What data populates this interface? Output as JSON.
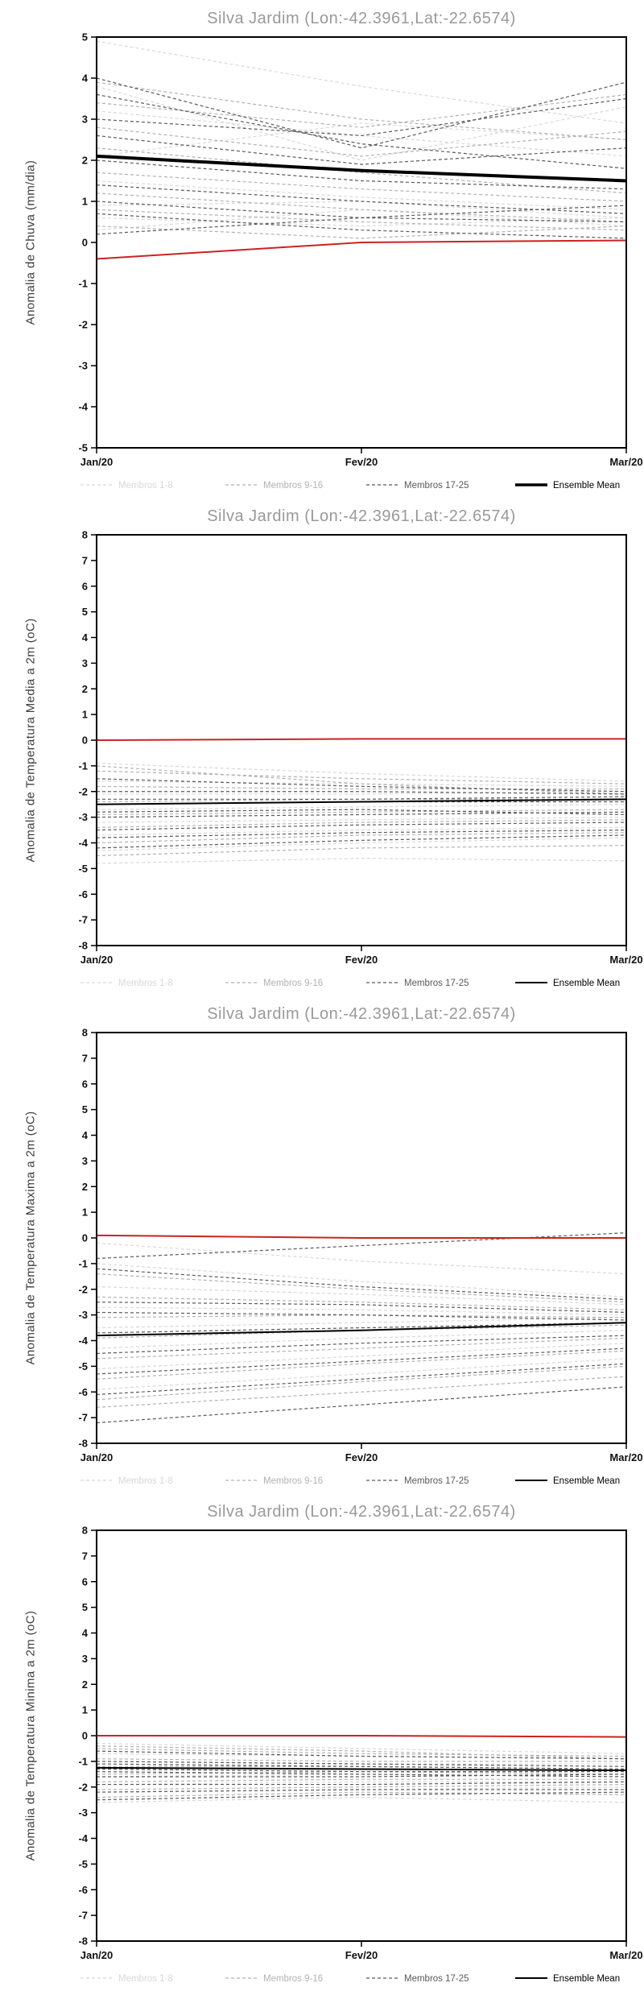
{
  "window": {
    "background": "#ffffff"
  },
  "colors": {
    "title": "#999999",
    "axis": "#000000",
    "tick_labels": "#111111",
    "ylabel": "#3c3c3c",
    "members_1_8": "#d8d8d8",
    "members_9_16": "#b2b2b2",
    "members_17_25": "#5a5a5a",
    "ensemble_mean": "#000000",
    "reference_line": "#cc2222"
  },
  "chart_data": [
    {
      "type": "line",
      "title": "Silva Jardim (Lon:-42.3961,Lat:-22.6574)",
      "ylabel": "Anomalia de Chuva (mm/dia)",
      "x": [
        "Jan/20",
        "Fev/20",
        "Mar/20"
      ],
      "ylim": [
        -5,
        5
      ],
      "ytick_step": 1,
      "grid": false,
      "legend_position": "bottom",
      "groups": [
        {
          "name": "Membros 1-8",
          "color": "#d8d8d8",
          "style": "dashed",
          "members": [
            [
              3.8,
              2.0,
              3.3
            ],
            [
              3.2,
              2.6,
              2.1
            ],
            [
              2.1,
              2.9,
              2.5
            ],
            [
              1.5,
              1.1,
              0.8
            ],
            [
              0.9,
              1.0,
              0.6
            ],
            [
              0.6,
              0.4,
              0.6
            ],
            [
              0.3,
              0.8,
              0.4
            ],
            [
              4.9,
              3.8,
              2.9
            ]
          ]
        },
        {
          "name": "Membros 9-16",
          "color": "#b2b2b2",
          "style": "dashed",
          "members": [
            [
              3.9,
              3.0,
              2.5
            ],
            [
              3.4,
              2.8,
              3.6
            ],
            [
              2.8,
              2.1,
              2.7
            ],
            [
              2.3,
              1.7,
              1.2
            ],
            [
              1.7,
              1.3,
              1.0
            ],
            [
              1.2,
              0.8,
              0.5
            ],
            [
              0.8,
              0.5,
              0.3
            ],
            [
              0.4,
              0.1,
              0.4
            ]
          ]
        },
        {
          "name": "Membros 17-25",
          "color": "#5a5a5a",
          "style": "dashed",
          "members": [
            [
              4.0,
              2.3,
              3.9
            ],
            [
              3.6,
              2.4,
              1.8
            ],
            [
              3.0,
              2.6,
              3.5
            ],
            [
              2.6,
              1.9,
              2.3
            ],
            [
              2.0,
              1.5,
              1.3
            ],
            [
              1.4,
              1.0,
              0.7
            ],
            [
              1.0,
              0.6,
              0.5
            ],
            [
              0.7,
              0.3,
              0.1
            ],
            [
              0.2,
              0.6,
              0.9
            ]
          ]
        }
      ],
      "ensemble_mean": {
        "name": "Ensemble Mean",
        "color": "#000000",
        "style": "solid",
        "width": 4,
        "values": [
          2.1,
          1.75,
          1.5
        ]
      },
      "reference_line": {
        "color": "#cc2222",
        "style": "solid",
        "width": 2,
        "values": [
          -0.4,
          0.0,
          0.05
        ]
      }
    },
    {
      "type": "line",
      "title": "Silva Jardim (Lon:-42.3961,Lat:-22.6574)",
      "ylabel": "Anomalia de Temperatura Media a 2m (oC)",
      "x": [
        "Jan/20",
        "Fev/20",
        "Mar/20"
      ],
      "ylim": [
        -8,
        8
      ],
      "ytick_step": 1,
      "grid": false,
      "legend_position": "bottom",
      "groups": [
        {
          "name": "Membros 1-8",
          "color": "#d8d8d8",
          "style": "dashed",
          "members": [
            [
              -0.9,
              -1.3,
              -1.6
            ],
            [
              -1.6,
              -1.7,
              -1.8
            ],
            [
              -2.1,
              -2.1,
              -2.0
            ],
            [
              -2.7,
              -2.6,
              -2.5
            ],
            [
              -3.2,
              -3.1,
              -3.0
            ],
            [
              -3.7,
              -3.5,
              -3.4
            ],
            [
              -4.3,
              -4.0,
              -3.8
            ],
            [
              -4.8,
              -4.6,
              -4.7
            ]
          ]
        },
        {
          "name": "Membros 9-16",
          "color": "#b2b2b2",
          "style": "dashed",
          "members": [
            [
              -1.2,
              -1.5,
              -1.7
            ],
            [
              -1.8,
              -1.9,
              -1.9
            ],
            [
              -2.4,
              -2.3,
              -2.3
            ],
            [
              -2.9,
              -2.8,
              -2.7
            ],
            [
              -3.4,
              -3.2,
              -3.1
            ],
            [
              -4.0,
              -3.7,
              -3.6
            ],
            [
              -4.5,
              -4.2,
              -4.1
            ],
            [
              -1.0,
              -1.7,
              -2.1
            ]
          ]
        },
        {
          "name": "Membros 17-25",
          "color": "#5a5a5a",
          "style": "dashed",
          "members": [
            [
              -1.5,
              -1.8,
              -2.0
            ],
            [
              -2.0,
              -2.0,
              -2.1
            ],
            [
              -2.5,
              -2.4,
              -2.4
            ],
            [
              -3.0,
              -2.9,
              -2.8
            ],
            [
              -3.5,
              -3.3,
              -3.2
            ],
            [
              -3.8,
              -3.6,
              -3.5
            ],
            [
              -4.2,
              -3.9,
              -3.7
            ],
            [
              -2.3,
              -2.3,
              -2.2
            ],
            [
              -2.8,
              -2.7,
              -2.9
            ]
          ]
        }
      ],
      "ensemble_mean": {
        "name": "Ensemble Mean",
        "color": "#000000",
        "style": "solid",
        "width": 2,
        "values": [
          -2.5,
          -2.4,
          -2.3
        ]
      },
      "reference_line": {
        "color": "#cc2222",
        "style": "solid",
        "width": 2,
        "values": [
          0.0,
          0.05,
          0.05
        ]
      }
    },
    {
      "type": "line",
      "title": "Silva Jardim (Lon:-42.3961,Lat:-22.6574)",
      "ylabel": "Anomalia de Temperatura Maxima a 2m (oC)",
      "x": [
        "Jan/20",
        "Fev/20",
        "Mar/20"
      ],
      "ylim": [
        -8,
        8
      ],
      "ytick_step": 1,
      "grid": false,
      "legend_position": "bottom",
      "groups": [
        {
          "name": "Membros 1-8",
          "color": "#d8d8d8",
          "style": "dashed",
          "members": [
            [
              -1.0,
              -1.7,
              -2.3
            ],
            [
              -1.9,
              -2.2,
              -2.6
            ],
            [
              -2.7,
              -2.8,
              -3.0
            ],
            [
              -3.5,
              -3.3,
              -3.1
            ],
            [
              -4.3,
              -3.9,
              -3.6
            ],
            [
              -5.1,
              -4.6,
              -4.1
            ],
            [
              -5.9,
              -5.3,
              -4.7
            ],
            [
              -0.2,
              -0.9,
              -1.4
            ]
          ]
        },
        {
          "name": "Membros 9-16",
          "color": "#b2b2b2",
          "style": "dashed",
          "members": [
            [
              -1.4,
              -2.0,
              -2.5
            ],
            [
              -2.3,
              -2.5,
              -2.8
            ],
            [
              -3.1,
              -3.0,
              -3.1
            ],
            [
              -3.9,
              -3.6,
              -3.4
            ],
            [
              -4.7,
              -4.3,
              -3.9
            ],
            [
              -5.5,
              -4.9,
              -4.4
            ],
            [
              -6.3,
              -5.6,
              -5.0
            ],
            [
              -6.6,
              -6.0,
              -5.4
            ]
          ]
        },
        {
          "name": "Membros 17-25",
          "color": "#5a5a5a",
          "style": "dashed",
          "members": [
            [
              -1.2,
              -1.9,
              -2.4
            ],
            [
              -2.5,
              -2.6,
              -2.9
            ],
            [
              -2.9,
              -3.0,
              -3.2
            ],
            [
              -3.7,
              -3.5,
              -3.3
            ],
            [
              -4.5,
              -4.1,
              -3.8
            ],
            [
              -5.3,
              -4.8,
              -4.3
            ],
            [
              -6.1,
              -5.5,
              -4.9
            ],
            [
              -7.2,
              -6.5,
              -5.8
            ],
            [
              -0.8,
              -0.3,
              0.2
            ]
          ]
        }
      ],
      "ensemble_mean": {
        "name": "Ensemble Mean",
        "color": "#000000",
        "style": "solid",
        "width": 2,
        "values": [
          -3.8,
          -3.6,
          -3.3
        ]
      },
      "reference_line": {
        "color": "#cc2222",
        "style": "solid",
        "width": 2,
        "values": [
          0.1,
          0.0,
          0.0
        ]
      }
    },
    {
      "type": "line",
      "title": "Silva Jardim (Lon:-42.3961,Lat:-22.6574)",
      "ylabel": "Anomalia de Temperatura Minima a 2m (oC)",
      "x": [
        "Jan/20",
        "Fev/20",
        "Mar/20"
      ],
      "ylim": [
        -8,
        8
      ],
      "ytick_step": 1,
      "grid": false,
      "legend_position": "bottom",
      "groups": [
        {
          "name": "Membros 1-8",
          "color": "#d8d8d8",
          "style": "dashed",
          "members": [
            [
              -0.3,
              -0.5,
              -0.7
            ],
            [
              -0.7,
              -0.8,
              -0.9
            ],
            [
              -1.0,
              -1.1,
              -1.1
            ],
            [
              -1.3,
              -1.3,
              -1.4
            ],
            [
              -1.6,
              -1.5,
              -1.6
            ],
            [
              -1.9,
              -1.8,
              -1.8
            ],
            [
              -2.2,
              -2.1,
              -2.0
            ],
            [
              -2.6,
              -2.4,
              -2.6
            ]
          ]
        },
        {
          "name": "Membros 9-16",
          "color": "#b2b2b2",
          "style": "dashed",
          "members": [
            [
              -0.5,
              -0.7,
              -0.8
            ],
            [
              -0.9,
              -1.0,
              -1.0
            ],
            [
              -1.2,
              -1.2,
              -1.3
            ],
            [
              -1.5,
              -1.4,
              -1.5
            ],
            [
              -1.8,
              -1.7,
              -1.7
            ],
            [
              -2.1,
              -2.0,
              -1.9
            ],
            [
              -2.4,
              -2.2,
              -2.3
            ],
            [
              -0.4,
              -0.6,
              -0.9
            ]
          ]
        },
        {
          "name": "Membros 17-25",
          "color": "#5a5a5a",
          "style": "dashed",
          "members": [
            [
              -0.6,
              -0.8,
              -0.9
            ],
            [
              -1.0,
              -1.1,
              -1.2
            ],
            [
              -1.3,
              -1.4,
              -1.4
            ],
            [
              -1.6,
              -1.6,
              -1.5
            ],
            [
              -1.9,
              -1.9,
              -1.8
            ],
            [
              -2.2,
              -2.1,
              -2.1
            ],
            [
              -2.5,
              -2.3,
              -2.2
            ],
            [
              -1.1,
              -1.2,
              -1.3
            ],
            [
              -1.4,
              -1.5,
              -1.6
            ]
          ]
        }
      ],
      "ensemble_mean": {
        "name": "Ensemble Mean",
        "color": "#000000",
        "style": "solid",
        "width": 2,
        "values": [
          -1.25,
          -1.3,
          -1.35
        ]
      },
      "reference_line": {
        "color": "#cc2222",
        "style": "solid",
        "width": 2,
        "values": [
          0.0,
          0.0,
          -0.05
        ]
      }
    }
  ]
}
